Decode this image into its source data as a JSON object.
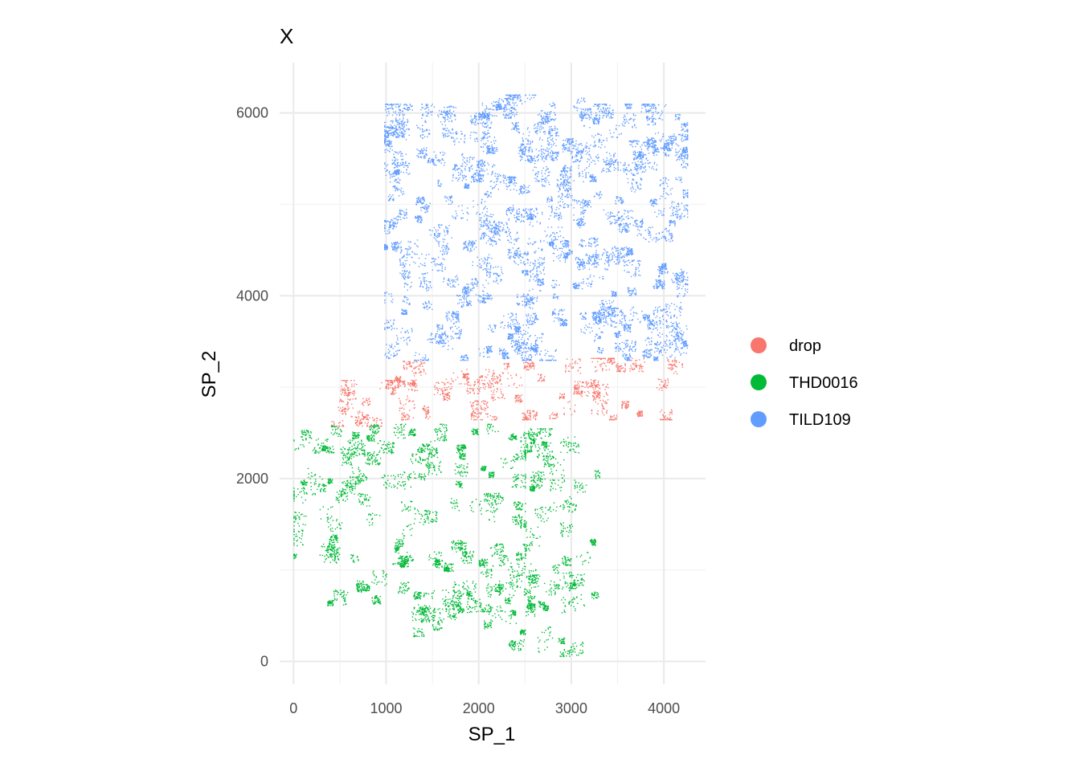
{
  "chart_data": {
    "type": "scatter",
    "title": "X",
    "xlabel": "SP_1",
    "ylabel": "SP_2",
    "xlim": [
      -150,
      4450
    ],
    "ylim": [
      -250,
      6550
    ],
    "xticks": [
      0,
      1000,
      2000,
      3000,
      4000
    ],
    "yticks": [
      0,
      2000,
      4000,
      6000
    ],
    "xtick_labels": [
      "0",
      "1000",
      "2000",
      "3000",
      "4000"
    ],
    "ytick_labels": [
      "0",
      "2000",
      "4000",
      "6000"
    ],
    "grid": true,
    "legend_position": "right",
    "series": [
      {
        "name": "drop",
        "color": "#F8766D",
        "regions": [
          {
            "x": [
              1050,
              4250
            ],
            "y": [
              2650,
              3320
            ]
          },
          {
            "x": [
              380,
              1100
            ],
            "y": [
              2580,
              3080
            ]
          }
        ],
        "point_count": 1800
      },
      {
        "name": "THD0016",
        "color": "#00BA38",
        "regions": [
          {
            "x": [
              0,
              2500
            ],
            "y": [
              550,
              2600
            ]
          },
          {
            "x": [
              1050,
              2600
            ],
            "y": [
              280,
              1300
            ]
          },
          {
            "x": [
              2450,
              3300
            ],
            "y": [
              500,
              2550
            ]
          },
          {
            "x": [
              2300,
              3150
            ],
            "y": [
              60,
              1100
            ]
          }
        ],
        "point_count": 5000
      },
      {
        "name": "TILD109",
        "color": "#619CFF",
        "regions": [
          {
            "x": [
              980,
              4250
            ],
            "y": [
              3300,
              6100
            ]
          },
          {
            "x": [
              2000,
              3300
            ],
            "y": [
              5950,
              6200
            ]
          },
          {
            "x": [
              3500,
              4250
            ],
            "y": [
              5350,
              5700
            ]
          }
        ],
        "point_count": 9000
      }
    ]
  }
}
